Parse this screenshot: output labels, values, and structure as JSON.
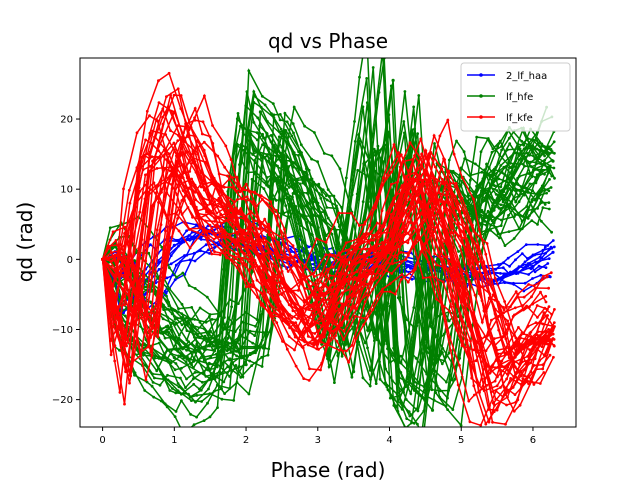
{
  "chart_data": {
    "type": "line",
    "title": "qd vs Phase",
    "xlabel": "Phase (rad)",
    "ylabel": "qd (rad)",
    "xlim": [
      -0.315,
      6.6
    ],
    "ylim": [
      -23.9,
      28.7
    ],
    "xticks": [
      0,
      1,
      2,
      3,
      4,
      5,
      6
    ],
    "xtick_labels": [
      "0",
      "1",
      "2",
      "3",
      "4",
      "5",
      "6"
    ],
    "yticks": [
      -20,
      -10,
      0,
      10,
      20
    ],
    "ytick_labels": [
      "−20",
      "−10",
      "0",
      "10",
      "20"
    ],
    "grid": false,
    "legend_position": "top-right",
    "series": [
      {
        "name": "2_lf_haa",
        "color": "#0000ff",
        "marker": "dot",
        "sample_points": [
          {
            "x": 0.0,
            "y": 0.0
          },
          {
            "x": 0.15,
            "y": -1.5
          },
          {
            "x": 0.25,
            "y": -8.0
          },
          {
            "x": 0.4,
            "y": -6.0
          },
          {
            "x": 0.6,
            "y": -3.0
          },
          {
            "x": 1.0,
            "y": 2.0
          },
          {
            "x": 1.5,
            "y": 4.0
          },
          {
            "x": 2.0,
            "y": 2.0
          },
          {
            "x": 2.5,
            "y": 1.0
          },
          {
            "x": 3.0,
            "y": -1.0
          },
          {
            "x": 3.5,
            "y": 0.5
          },
          {
            "x": 4.0,
            "y": 0.0
          },
          {
            "x": 4.5,
            "y": -1.5
          },
          {
            "x": 5.0,
            "y": -2.0
          },
          {
            "x": 5.5,
            "y": -3.0
          },
          {
            "x": 6.0,
            "y": -1.0
          },
          {
            "x": 6.28,
            "y": 1.0
          }
        ]
      },
      {
        "name": "lf_hfe",
        "color": "#008000",
        "marker": "dot",
        "sample_points": [
          {
            "x": 0.0,
            "y": 0.0
          },
          {
            "x": 0.5,
            "y": -8.0
          },
          {
            "x": 1.0,
            "y": -14.0
          },
          {
            "x": 1.5,
            "y": -17.0
          },
          {
            "x": 2.0,
            "y": -15.0
          },
          {
            "x": 2.2,
            "y": 21.0
          },
          {
            "x": 2.5,
            "y": 16.0
          },
          {
            "x": 3.0,
            "y": 8.0
          },
          {
            "x": 3.5,
            "y": -16.0
          },
          {
            "x": 4.05,
            "y": 25.5
          },
          {
            "x": 4.25,
            "y": -17.0
          },
          {
            "x": 4.6,
            "y": -21.5
          },
          {
            "x": 5.0,
            "y": 13.0
          },
          {
            "x": 5.5,
            "y": 8.0
          },
          {
            "x": 6.0,
            "y": 17.0
          },
          {
            "x": 6.28,
            "y": 14.0
          }
        ]
      },
      {
        "name": "lf_kfe",
        "color": "#ff0000",
        "marker": "dot",
        "sample_points": [
          {
            "x": 0.0,
            "y": 0.0
          },
          {
            "x": 0.3,
            "y": -12.0
          },
          {
            "x": 0.38,
            "y": -16.5
          },
          {
            "x": 0.7,
            "y": 14.0
          },
          {
            "x": 1.0,
            "y": 21.0
          },
          {
            "x": 1.5,
            "y": 8.0
          },
          {
            "x": 2.0,
            "y": 6.0
          },
          {
            "x": 2.5,
            "y": -5.0
          },
          {
            "x": 3.0,
            "y": -12.0
          },
          {
            "x": 3.5,
            "y": -2.0
          },
          {
            "x": 4.0,
            "y": 2.0
          },
          {
            "x": 4.45,
            "y": 15.0
          },
          {
            "x": 5.0,
            "y": -2.0
          },
          {
            "x": 5.45,
            "y": -20.5
          },
          {
            "x": 5.8,
            "y": -16.0
          },
          {
            "x": 6.28,
            "y": -10.0
          }
        ]
      }
    ]
  }
}
